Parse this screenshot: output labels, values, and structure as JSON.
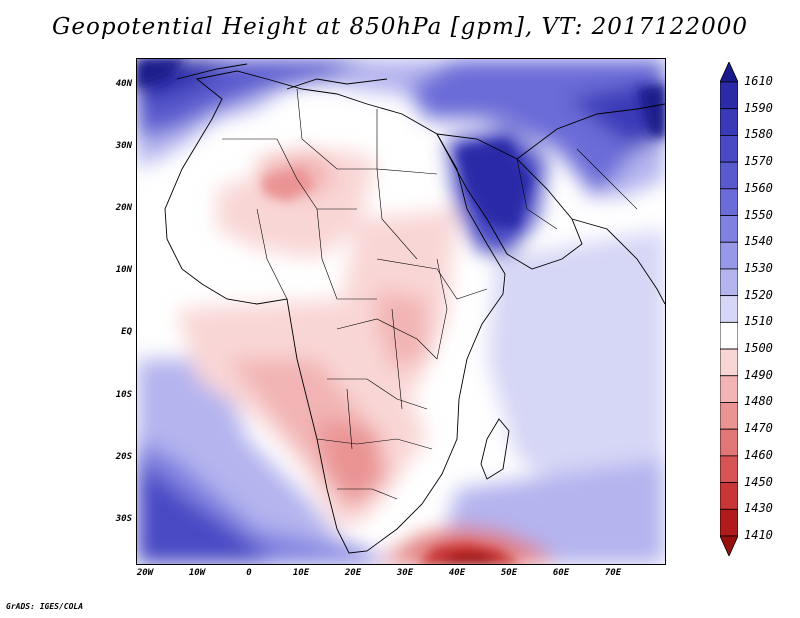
{
  "title": "Geopotential Height at 850hPa [gpm], VT: 2017122000",
  "credit": "GrADS: IGES/COLA",
  "y_axis_labels": [
    "40N",
    "30N",
    "20N",
    "10N",
    "EQ",
    "10S",
    "20S",
    "30S"
  ],
  "x_axis_labels": [
    "20W",
    "10W",
    "0",
    "10E",
    "20E",
    "30E",
    "40E",
    "50E",
    "60E",
    "70E"
  ],
  "colorbar": {
    "levels": [
      "1610",
      "1590",
      "1580",
      "1570",
      "1560",
      "1550",
      "1540",
      "1530",
      "1520",
      "1510",
      "1500",
      "1490",
      "1480",
      "1470",
      "1460",
      "1450",
      "1430",
      "1410"
    ],
    "colors": [
      "#1a1a8c",
      "#2b2ba8",
      "#3a3ab8",
      "#4a4ac4",
      "#5a5acf",
      "#6c6cd8",
      "#8080e0",
      "#9898e8",
      "#b4b4ef",
      "#d6d6f6",
      "#ffffff",
      "#f9d6d6",
      "#f2b4b4",
      "#ea9494",
      "#e07676",
      "#d65454",
      "#c83636",
      "#b01c1c",
      "#961010"
    ]
  }
}
